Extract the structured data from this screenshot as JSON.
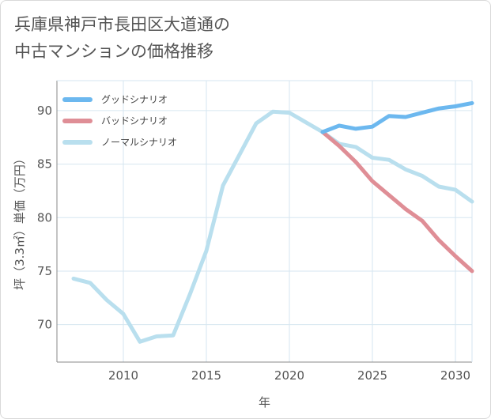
{
  "title": {
    "line1": "兵庫県神戸市長田区大道通の",
    "line2": "中古マンションの価格推移"
  },
  "chart_data": {
    "type": "line",
    "xlabel": "年",
    "ylabel": "坪（3.3㎡）単価（万円）",
    "xlim": [
      2006,
      2031
    ],
    "ylim": [
      66.5,
      92.8
    ],
    "x_ticks": [
      2010,
      2015,
      2020,
      2025,
      2030
    ],
    "y_ticks": [
      70,
      75,
      80,
      85,
      90
    ],
    "grid": true,
    "legend_position": "top-left",
    "series": [
      {
        "name": "グッドシナリオ",
        "color": "#6cb8ef",
        "x": [
          2022,
          2023,
          2024,
          2025,
          2026,
          2027,
          2028,
          2029,
          2030,
          2031
        ],
        "values": [
          88.0,
          88.6,
          88.3,
          88.5,
          89.5,
          89.4,
          89.8,
          90.2,
          90.4,
          90.7
        ]
      },
      {
        "name": "バッドシナリオ",
        "color": "#df8e96",
        "x": [
          2022,
          2023,
          2024,
          2025,
          2026,
          2027,
          2028,
          2029,
          2030,
          2031
        ],
        "values": [
          88.0,
          86.7,
          85.2,
          83.4,
          82.1,
          80.8,
          79.7,
          77.9,
          76.4,
          75.0
        ]
      },
      {
        "name": "ノーマルシナリオ",
        "color": "#b9dfee",
        "x": [
          2007,
          2008,
          2009,
          2010,
          2011,
          2012,
          2013,
          2014,
          2015,
          2016,
          2017,
          2018,
          2019,
          2020,
          2021,
          2022,
          2023,
          2024,
          2025,
          2026,
          2027,
          2028,
          2029,
          2030,
          2031
        ],
        "values": [
          74.3,
          73.9,
          72.3,
          71.0,
          68.4,
          68.9,
          69.0,
          72.8,
          76.9,
          83.0,
          85.9,
          88.8,
          89.9,
          89.8,
          88.9,
          88.0,
          86.9,
          86.6,
          85.6,
          85.4,
          84.5,
          83.9,
          82.9,
          82.6,
          81.5
        ]
      }
    ]
  }
}
